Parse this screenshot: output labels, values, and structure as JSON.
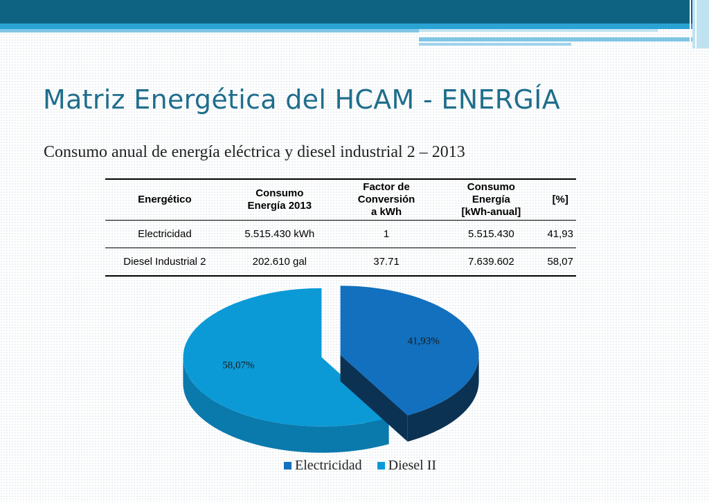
{
  "title": "Matriz Energética del HCAM - ENERGÍA",
  "subtitle": "Consumo anual de energía eléctrica y diesel industrial 2 – 2013",
  "table": {
    "headers": [
      [
        "Energético"
      ],
      [
        "Consumo",
        "Energía 2013"
      ],
      [
        "Factor de",
        "Conversión",
        "a kWh"
      ],
      [
        "Consumo",
        "Energía",
        "[kWh-anual]"
      ],
      [
        "[%]"
      ]
    ],
    "rows": [
      [
        "Electricidad",
        "5.515.430 kWh",
        "1",
        "5.515.430",
        "41,93"
      ],
      [
        "Diesel Industrial 2",
        "202.610 gal",
        "37.71",
        "7.639.602",
        "58,07"
      ]
    ]
  },
  "chart_data": {
    "type": "pie",
    "title": "",
    "categories": [
      "Electricidad",
      "Diesel II"
    ],
    "values": [
      41.93,
      58.07
    ],
    "data_labels": [
      "41,93%",
      "58,07%"
    ],
    "colors": [
      "#1270be",
      "#0b9ad6"
    ],
    "side_colors": [
      "#0b3253",
      "#0a79ac"
    ],
    "exploded": true,
    "three_d": true,
    "legend_position": "bottom"
  },
  "legend": [
    {
      "label": "Electricidad",
      "color": "#1270be"
    },
    {
      "label": "Diesel II",
      "color": "#0b9ad6"
    }
  ]
}
